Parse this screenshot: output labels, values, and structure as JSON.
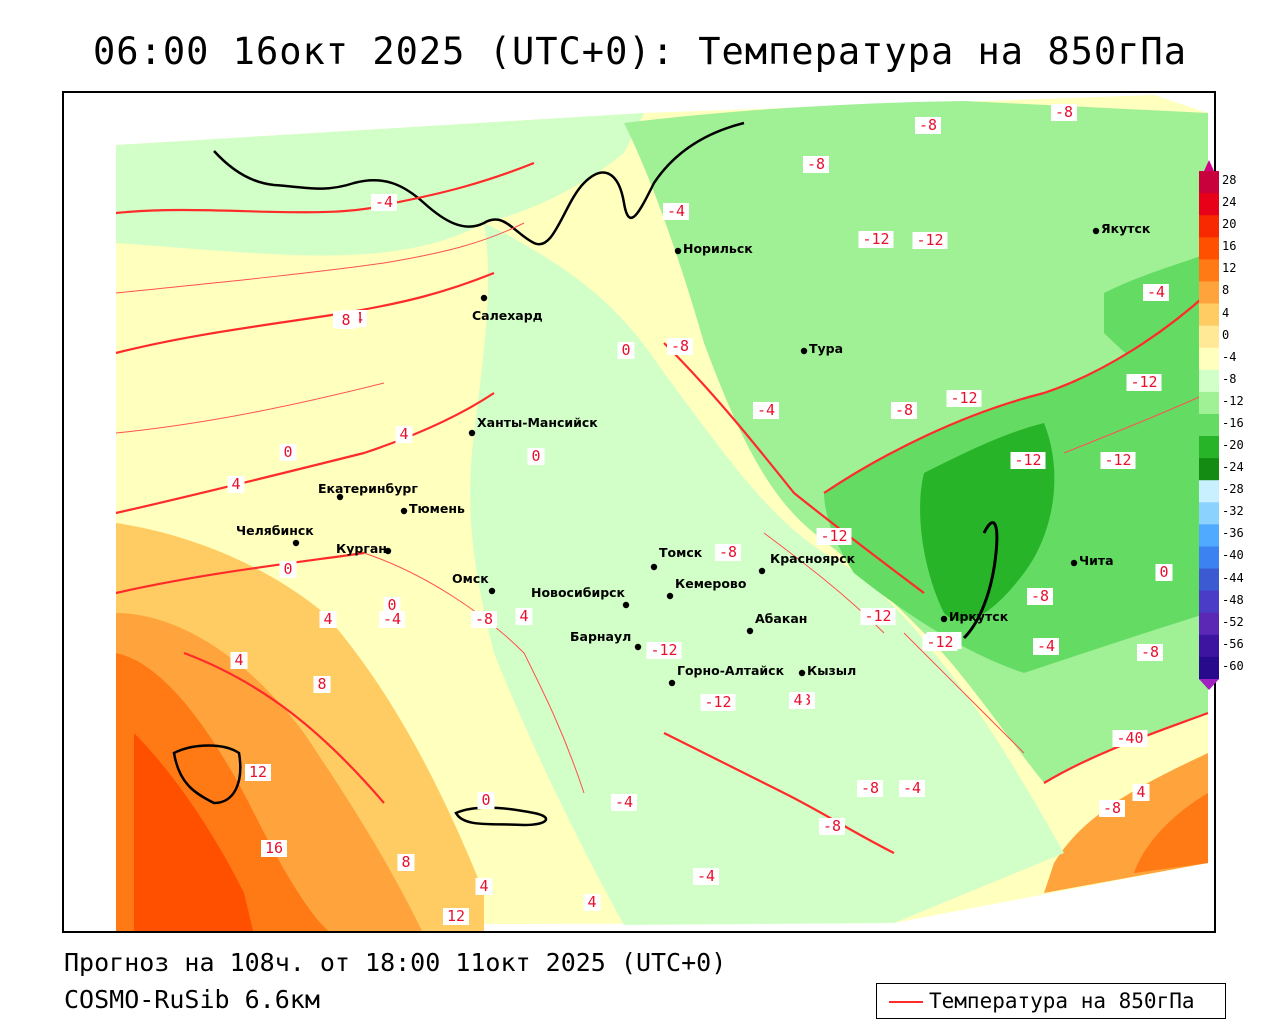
{
  "title": "06:00 16окт 2025 (UTC+0): Температура на 850гПа",
  "footer": {
    "forecast_line": "Прогноз на 108ч. от 18:00 11окт 2025 (UTC+0)",
    "model_line": "COSMO-RuSib 6.6км"
  },
  "legend": {
    "label": "Температура на 850гПа",
    "line_color": "#ff2a2a"
  },
  "colorbar": {
    "ticks": [
      "28",
      "24",
      "20",
      "16",
      "12",
      "8",
      "4",
      "0",
      "-4",
      "-8",
      "-12",
      "-16",
      "-20",
      "-24",
      "-28",
      "-32",
      "-36",
      "-40",
      "-44",
      "-48",
      "-52",
      "-56",
      "-60"
    ],
    "colors": [
      "#c8003c",
      "#e80018",
      "#f82800",
      "#ff5000",
      "#ff7a14",
      "#ffa43c",
      "#ffcc64",
      "#ffe896",
      "#ffffbe",
      "#d2ffc8",
      "#a0f096",
      "#64dc64",
      "#28b428",
      "#148c14",
      "#c8f0ff",
      "#8cd2ff",
      "#50aaff",
      "#3c82f0",
      "#3c5ad2",
      "#4b3cc8",
      "#5a28b4",
      "#3c14a0",
      "#280a8c"
    ],
    "top_color": "#d40080",
    "bottom_color": "#a020c0"
  },
  "cities": [
    {
      "name": "Салехард"
    },
    {
      "name": "Норильск"
    },
    {
      "name": "Тура"
    },
    {
      "name": "Якутск"
    },
    {
      "name": "Ханты-Мансийск"
    },
    {
      "name": "Екатеринбург"
    },
    {
      "name": "Тюмень"
    },
    {
      "name": "Челябинск"
    },
    {
      "name": "Курган"
    },
    {
      "name": "Омск"
    },
    {
      "name": "Новосибирск"
    },
    {
      "name": "Томск"
    },
    {
      "name": "Кемерово"
    },
    {
      "name": "Красноярск"
    },
    {
      "name": "Барнаул"
    },
    {
      "name": "Абакан"
    },
    {
      "name": "Горно-Алтайск"
    },
    {
      "name": "Кызыл"
    },
    {
      "name": "Иркутск"
    },
    {
      "name": "Чита"
    }
  ],
  "isotherm_labels": [
    "-4",
    "-4",
    "-4",
    "-8",
    "-8",
    "-8",
    "-12",
    "-12",
    "-8",
    "-4",
    "0",
    "0",
    "4",
    "0",
    "-4",
    "-8",
    "-12",
    "-12",
    "-12",
    "-12",
    "-12",
    "-12",
    "-8",
    "-8",
    "-40",
    "4",
    "8",
    "12",
    "16",
    "8",
    "4",
    "0",
    "12",
    "4",
    "4",
    "0",
    "-4",
    "-4",
    "-12",
    "-12",
    "-8",
    "-8",
    "-4",
    "-8",
    "-4",
    "0",
    "-4",
    "-8",
    "-12",
    "-8",
    "-12",
    "-8",
    "4",
    "4",
    "-4",
    "4",
    "0",
    "8",
    "4",
    "-4"
  ]
}
